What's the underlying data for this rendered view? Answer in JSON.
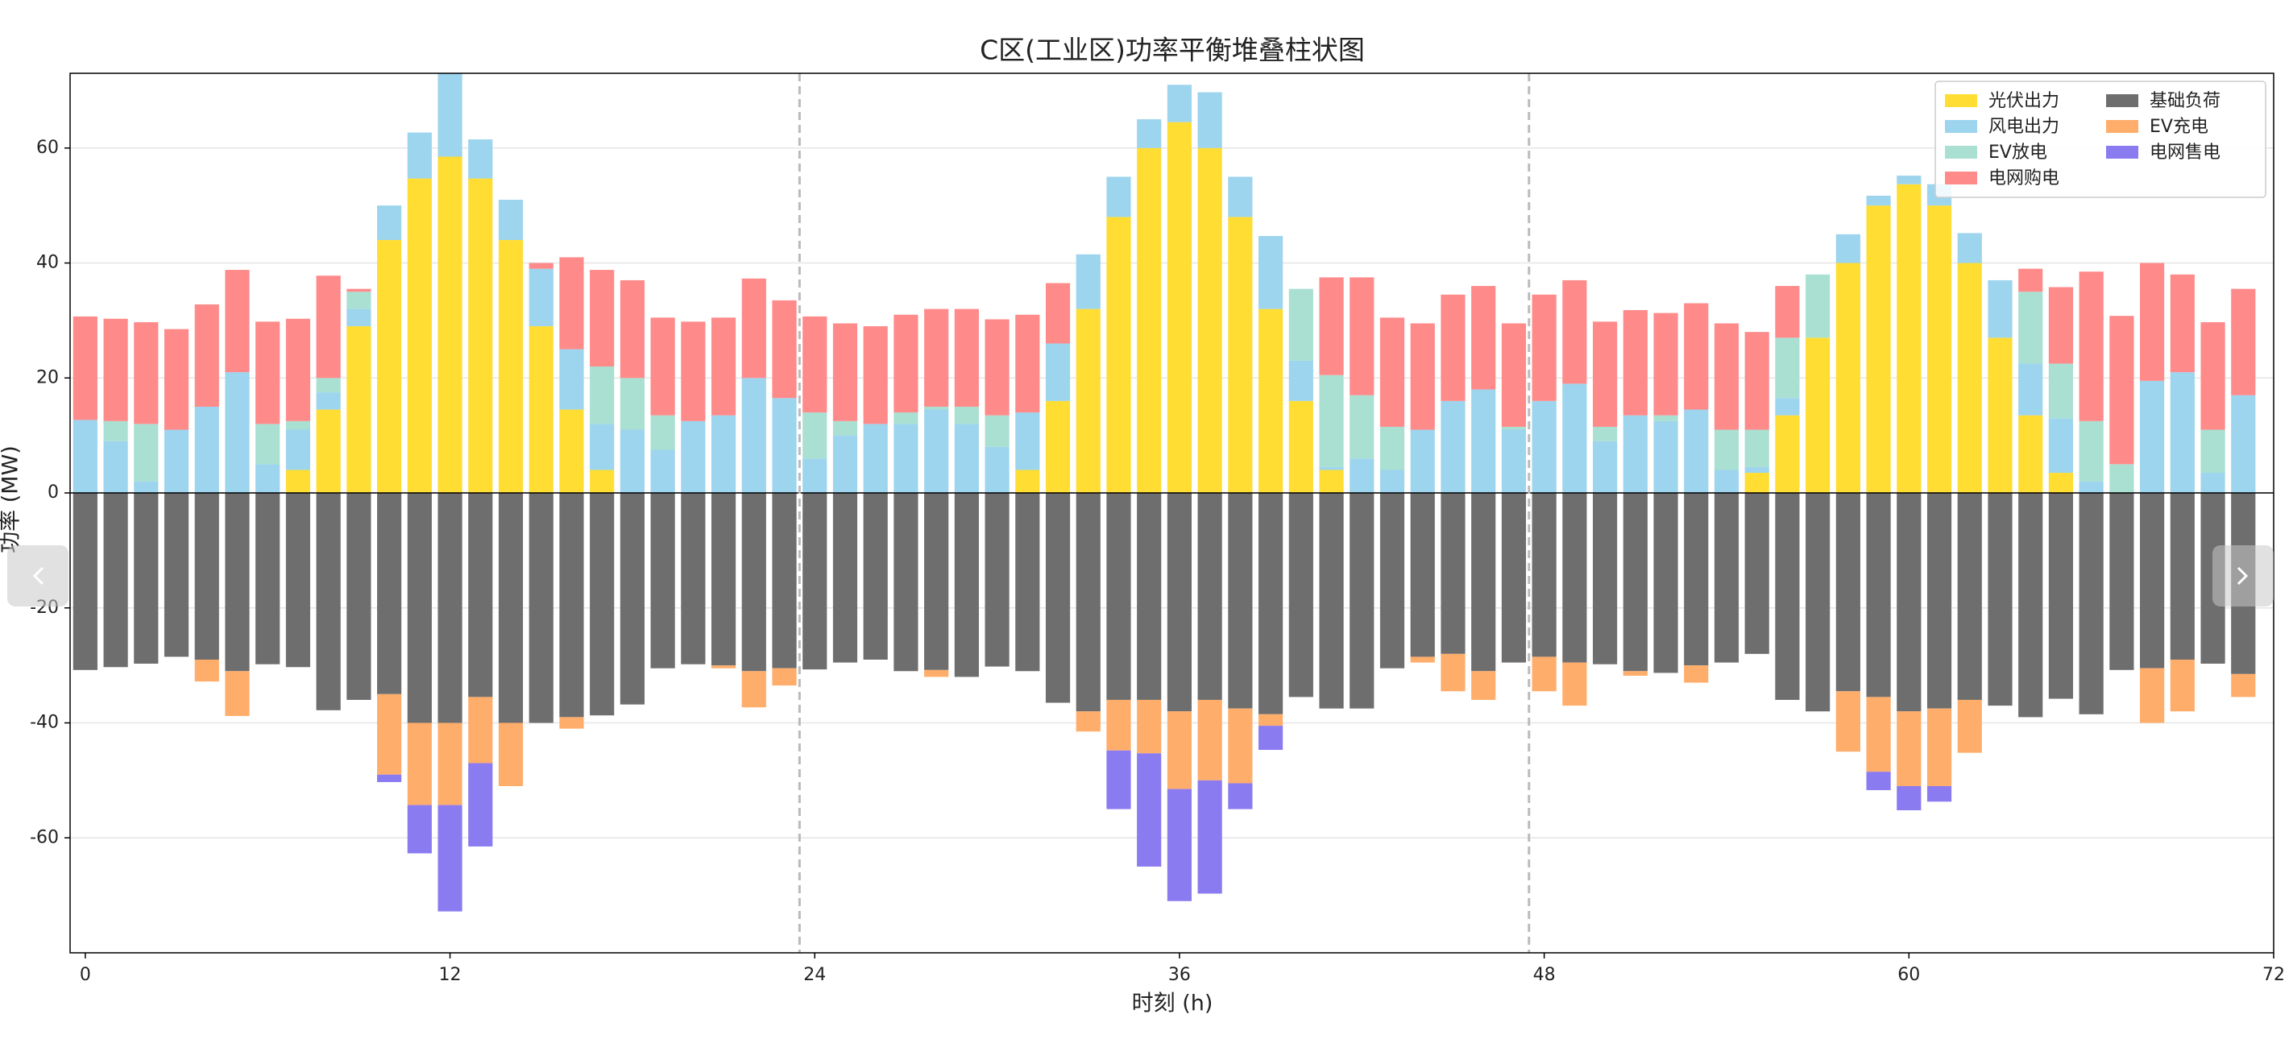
{
  "chart_data": {
    "type": "stacked_bar",
    "title": "C区(工业区)功率平衡堆叠柱状图",
    "xlabel": "时刻 (h)",
    "ylabel": "功率 (MW)",
    "xlim": [
      -0.5,
      72
    ],
    "ylim": [
      -80,
      73
    ],
    "xticks": [
      0,
      12,
      24,
      36,
      48,
      60,
      72
    ],
    "yticks": [
      -60,
      -40,
      -20,
      0,
      20,
      40,
      60
    ],
    "grid": true,
    "vlines": [
      23.5,
      47.5
    ],
    "legend": "upper right",
    "legend_columns": 2,
    "x": [
      0,
      1,
      2,
      3,
      4,
      5,
      6,
      7,
      8,
      9,
      10,
      11,
      12,
      13,
      14,
      15,
      16,
      17,
      18,
      19,
      20,
      21,
      22,
      23,
      24,
      25,
      26,
      27,
      28,
      29,
      30,
      31,
      32,
      33,
      34,
      35,
      36,
      37,
      38,
      39,
      40,
      41,
      42,
      43,
      44,
      45,
      46,
      47,
      48,
      49,
      50,
      51,
      52,
      53,
      54,
      55,
      56,
      57,
      58,
      59,
      60,
      61,
      62,
      63,
      64,
      65,
      66,
      67,
      68,
      69,
      70,
      71
    ],
    "series": [
      {
        "name": "光伏出力",
        "color": "#ffdd33",
        "values": [
          0,
          0,
          0,
          0,
          0,
          0,
          0,
          4,
          14.5,
          29,
          44,
          54.7,
          58.5,
          54.7,
          44,
          29,
          14.5,
          4,
          0,
          0,
          0,
          0,
          0,
          0,
          0,
          0,
          0,
          0,
          0,
          0,
          0,
          4,
          16,
          32,
          48,
          60,
          64.5,
          60,
          48,
          32,
          16,
          4,
          0,
          0,
          0,
          0,
          0,
          0,
          0,
          0,
          0,
          0,
          0,
          0,
          0,
          3.5,
          13.5,
          27,
          40,
          50,
          53.7,
          50,
          40,
          27,
          13.5,
          3.5,
          0,
          0,
          0,
          0,
          0,
          0
        ]
      },
      {
        "name": "风电出力",
        "color": "#9dd4ee",
        "values": [
          12.7,
          9,
          2,
          11,
          15,
          21,
          5,
          7,
          3,
          3,
          6,
          8,
          14.5,
          6.8,
          7,
          10,
          10.5,
          8,
          11,
          7.5,
          12.5,
          13.5,
          20,
          16.5,
          6,
          10,
          12,
          12,
          14.5,
          12,
          8,
          10,
          10,
          9.5,
          7,
          5,
          6.5,
          9.7,
          7,
          12.7,
          7,
          0.5,
          6,
          4,
          11,
          16,
          18,
          11,
          16,
          19,
          9,
          13.5,
          12.5,
          14.5,
          4,
          1,
          3,
          0,
          5,
          1.7,
          1.5,
          3.7,
          5.2,
          10,
          9,
          9.5,
          2,
          0,
          19.5,
          21,
          3.5,
          17
        ]
      },
      {
        "name": "EV放电",
        "color": "#a9e0d2",
        "values": [
          0,
          3.5,
          10,
          0,
          0,
          0,
          7,
          1.5,
          2.5,
          3,
          0,
          0,
          0,
          0,
          0,
          0,
          0,
          10,
          9,
          6,
          0,
          0,
          0,
          0,
          8,
          2.5,
          0,
          2,
          0.5,
          3,
          5.5,
          0,
          0,
          0,
          0,
          0,
          0,
          0,
          0,
          0,
          12.5,
          16,
          11,
          7.5,
          0,
          0,
          0,
          0.5,
          0,
          0,
          2.5,
          0,
          1,
          0,
          7,
          6.5,
          10.5,
          11,
          0,
          0,
          0,
          0,
          0,
          0,
          12.5,
          9.5,
          10.5,
          5,
          0,
          0,
          7.5,
          0
        ]
      },
      {
        "name": "电网购电",
        "color": "#ff8a8a",
        "values": [
          18,
          17.8,
          17.7,
          17.5,
          17.8,
          17.8,
          17.8,
          17.8,
          17.8,
          0.5,
          0,
          0,
          0,
          0,
          0,
          1,
          16,
          16.8,
          17,
          17,
          17.3,
          17,
          17.3,
          17,
          16.7,
          17,
          17,
          17,
          17,
          17,
          16.7,
          17,
          10.5,
          0,
          0,
          0,
          0,
          0,
          0,
          0,
          0,
          17,
          20.5,
          19,
          18.5,
          18.5,
          18,
          18,
          18.5,
          18,
          18.3,
          18.3,
          17.8,
          18.5,
          18.5,
          17,
          9,
          0,
          0,
          0,
          0,
          0,
          0,
          0,
          4,
          13.3,
          26,
          25.8,
          20.5,
          17,
          18.7,
          18.5
        ]
      },
      {
        "name": "基础负荷",
        "color": "#6e6e6e",
        "values": [
          -30.8,
          -30.3,
          -29.7,
          -28.5,
          -29,
          -31,
          -29.8,
          -30.3,
          -37.8,
          -36,
          -35,
          -40,
          -40,
          -35.5,
          -40,
          -40,
          -39,
          -38.7,
          -36.8,
          -30.5,
          -29.8,
          -30,
          -31,
          -30.5,
          -30.7,
          -29.5,
          -29,
          -31,
          -30.8,
          -32,
          -30.2,
          -31,
          -36.5,
          -38,
          -36,
          -36,
          -38,
          -36,
          -37.5,
          -38.5,
          -35.5,
          -37.5,
          -37.5,
          -30.5,
          -28.5,
          -28,
          -31,
          -29.5,
          -28.5,
          -29.5,
          -29.8,
          -31,
          -31.3,
          -30,
          -29.5,
          -28,
          -36,
          -38,
          -34.5,
          -35.5,
          -38,
          -37.5,
          -36,
          -37,
          -39,
          -35.8,
          -38.5,
          -30.8,
          -30.5,
          -29,
          -29.7,
          -31.5
        ]
      },
      {
        "name": "EV充电",
        "color": "#ffad6b",
        "values": [
          0,
          0,
          0,
          0,
          -3.8,
          -7.8,
          0,
          0,
          0,
          0,
          -14,
          -14.3,
          -14.3,
          -11.5,
          -11,
          0,
          -2,
          0,
          0,
          0,
          0,
          -0.5,
          -6.3,
          -3,
          0,
          0,
          0,
          0,
          -1.2,
          0,
          0,
          0,
          0,
          -3.5,
          -8.8,
          -9.3,
          -13.5,
          -14,
          -13,
          -2,
          0,
          0,
          0,
          0,
          -1,
          -6.5,
          -5,
          0,
          -6,
          -7.5,
          0,
          -0.8,
          0,
          -3,
          0,
          0,
          0,
          0,
          -10.5,
          -13,
          -13,
          -13.5,
          -9.2,
          0,
          0,
          0,
          0,
          0,
          -9.5,
          -9,
          0,
          -4
        ]
      },
      {
        "name": "电网售电",
        "color": "#8b7bf0",
        "values": [
          0,
          0,
          0,
          0,
          0,
          0,
          0,
          0,
          0,
          0,
          -1.3,
          -8.4,
          -18.5,
          -14.5,
          0,
          0,
          0,
          0,
          0,
          0,
          0,
          0,
          0,
          0,
          0,
          0,
          0,
          0,
          0,
          0,
          0,
          0,
          0,
          0,
          -10.2,
          -19.7,
          -19.5,
          -19.7,
          -4.5,
          -4.2,
          0,
          0,
          0,
          0,
          0,
          0,
          0,
          0,
          0,
          0,
          0,
          0,
          0,
          0,
          0,
          0,
          0,
          0,
          0,
          -3.2,
          -4.2,
          -2.7,
          0,
          0,
          0,
          0,
          0,
          0,
          0,
          0,
          0,
          0
        ]
      }
    ]
  }
}
